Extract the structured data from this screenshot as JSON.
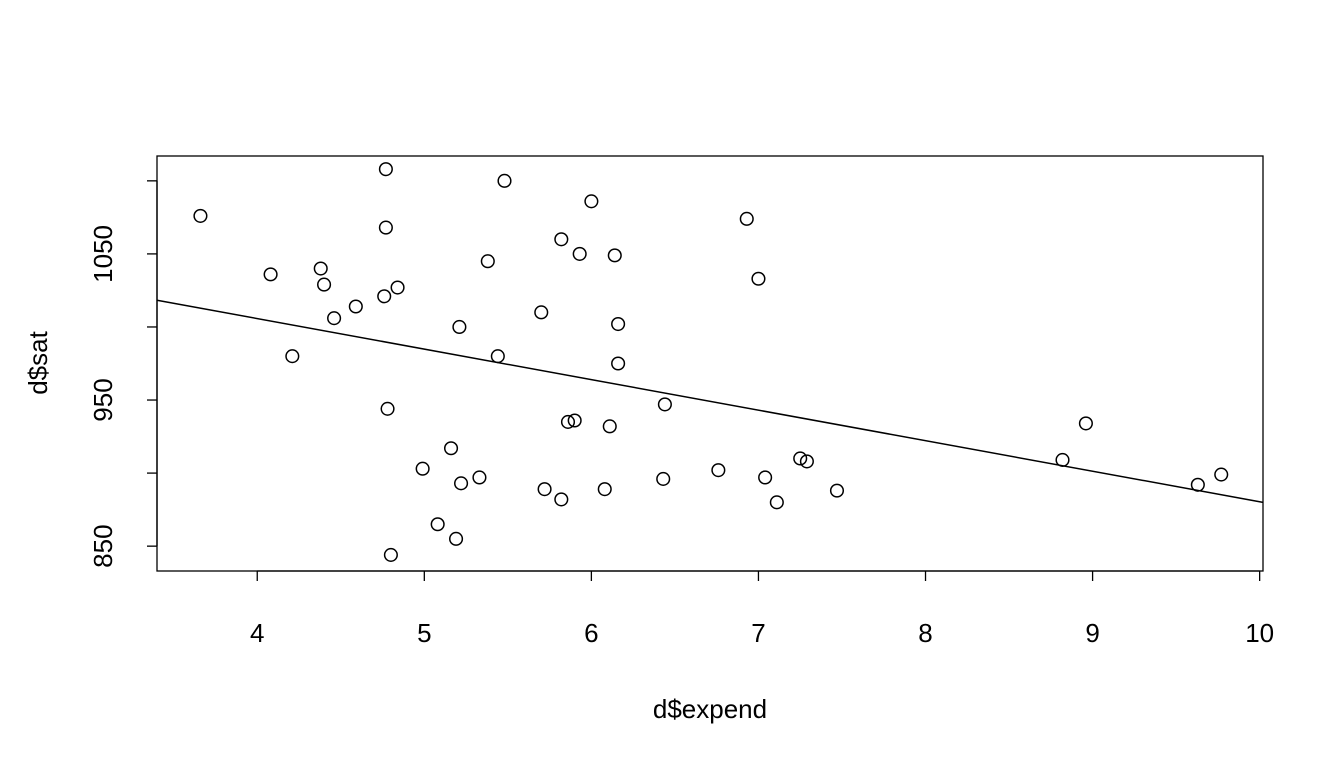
{
  "chart_data": {
    "type": "scatter",
    "title": "",
    "xlabel": "d$expend",
    "ylabel": "d$sat",
    "xlim": [
      3.4,
      10.02
    ],
    "ylim": [
      833,
      1117
    ],
    "xticks": [
      "4",
      "5",
      "6",
      "7",
      "8",
      "9",
      "10"
    ],
    "yticks": [
      "850",
      "950",
      "1050"
    ],
    "grid": false,
    "legend": "none",
    "points": [
      {
        "x": 3.66,
        "y": 1076
      },
      {
        "x": 4.08,
        "y": 1036
      },
      {
        "x": 4.21,
        "y": 980
      },
      {
        "x": 4.38,
        "y": 1040
      },
      {
        "x": 4.4,
        "y": 1029
      },
      {
        "x": 4.46,
        "y": 1006
      },
      {
        "x": 4.59,
        "y": 1014
      },
      {
        "x": 4.76,
        "y": 1021
      },
      {
        "x": 4.77,
        "y": 1108
      },
      {
        "x": 4.77,
        "y": 1068
      },
      {
        "x": 4.78,
        "y": 944
      },
      {
        "x": 4.8,
        "y": 844
      },
      {
        "x": 4.84,
        "y": 1027
      },
      {
        "x": 4.99,
        "y": 903
      },
      {
        "x": 5.08,
        "y": 865
      },
      {
        "x": 5.16,
        "y": 917
      },
      {
        "x": 5.19,
        "y": 855
      },
      {
        "x": 5.21,
        "y": 1000
      },
      {
        "x": 5.22,
        "y": 893
      },
      {
        "x": 5.33,
        "y": 897
      },
      {
        "x": 5.38,
        "y": 1045
      },
      {
        "x": 5.44,
        "y": 980
      },
      {
        "x": 5.48,
        "y": 1100
      },
      {
        "x": 5.7,
        "y": 1010
      },
      {
        "x": 5.72,
        "y": 889
      },
      {
        "x": 5.82,
        "y": 1060
      },
      {
        "x": 5.82,
        "y": 882
      },
      {
        "x": 5.86,
        "y": 935
      },
      {
        "x": 5.9,
        "y": 936
      },
      {
        "x": 5.93,
        "y": 1050
      },
      {
        "x": 6.0,
        "y": 1086
      },
      {
        "x": 6.08,
        "y": 889
      },
      {
        "x": 6.11,
        "y": 932
      },
      {
        "x": 6.14,
        "y": 1049
      },
      {
        "x": 6.16,
        "y": 1002
      },
      {
        "x": 6.16,
        "y": 975
      },
      {
        "x": 6.43,
        "y": 896
      },
      {
        "x": 6.44,
        "y": 947
      },
      {
        "x": 6.76,
        "y": 902
      },
      {
        "x": 6.93,
        "y": 1074
      },
      {
        "x": 7.0,
        "y": 1033
      },
      {
        "x": 7.04,
        "y": 897
      },
      {
        "x": 7.11,
        "y": 880
      },
      {
        "x": 7.25,
        "y": 910
      },
      {
        "x": 7.29,
        "y": 908
      },
      {
        "x": 7.47,
        "y": 888
      },
      {
        "x": 8.82,
        "y": 909
      },
      {
        "x": 8.96,
        "y": 934
      },
      {
        "x": 9.63,
        "y": 892
      },
      {
        "x": 9.77,
        "y": 899
      }
    ],
    "fit_line": {
      "intercept": 1089.3,
      "slope": -20.89
    }
  }
}
